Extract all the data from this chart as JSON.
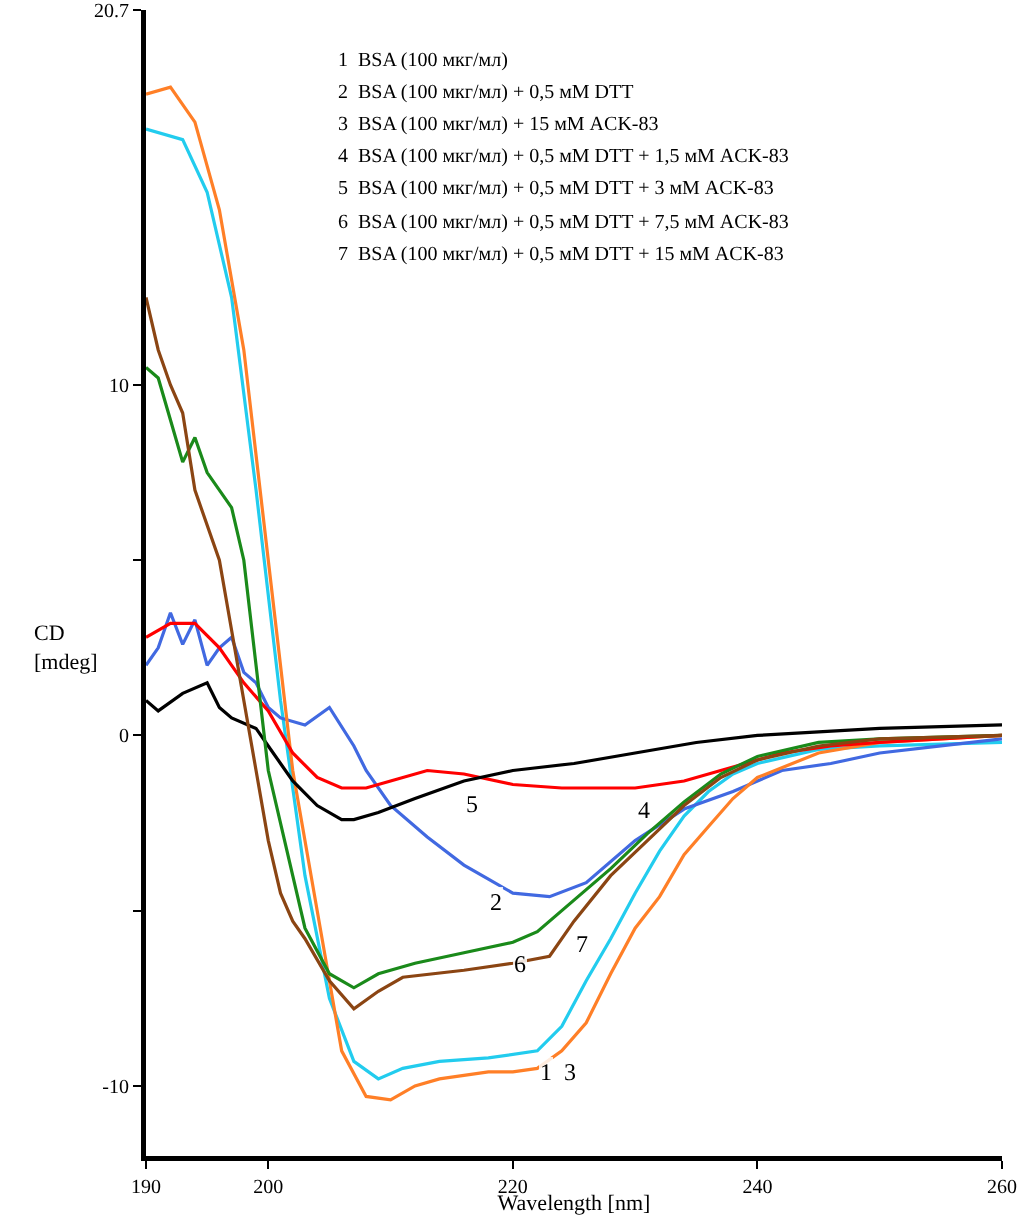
{
  "chart_data": {
    "type": "line",
    "xlabel": "Wavelength [nm]",
    "ylabel": "CD\n[mdeg]",
    "xlim": [
      190,
      260
    ],
    "xticks": [
      190,
      200,
      220,
      240,
      260
    ],
    "ylim": [
      -12,
      20.7
    ],
    "yticks": [
      20.7,
      {
        "value": 5,
        "label": null
      },
      10,
      0,
      {
        "value": -5,
        "label": null
      },
      {
        "value": -10,
        "label": "-10"
      }
    ],
    "grid": false,
    "marker": "none",
    "line_style": "solid",
    "series": [
      {
        "color": "#22ccee",
        "x": [
          190,
          193,
          195,
          197,
          199,
          201,
          203,
          205,
          207,
          209,
          211,
          214,
          218,
          222,
          224,
          226,
          228,
          230,
          232,
          234,
          236,
          238,
          240,
          245,
          250,
          260
        ],
        "values": [
          17.3,
          17,
          15.5,
          12.5,
          7,
          1,
          -4,
          -7.5,
          -9.3,
          -9.8,
          -9.5,
          -9.3,
          -9.2,
          -9,
          -8.3,
          -7,
          -5.8,
          -4.5,
          -3.3,
          -2.3,
          -1.6,
          -1.1,
          -0.8,
          -0.4,
          -0.3,
          -0.2
        ]
      },
      {
        "color": "#4169e1",
        "x": [
          190,
          191,
          192,
          193,
          194,
          195,
          196,
          197,
          198,
          199,
          200,
          201,
          203,
          205,
          207,
          208,
          210,
          213,
          216,
          218,
          220,
          223,
          226,
          230,
          234,
          238,
          242,
          246,
          250,
          255,
          260
        ],
        "values": [
          2,
          2.5,
          3.5,
          2.6,
          3.3,
          2,
          2.5,
          2.8,
          1.8,
          1.5,
          0.8,
          0.5,
          0.3,
          0.8,
          -0.3,
          -1,
          -2,
          -2.9,
          -3.7,
          -4.1,
          -4.5,
          -4.6,
          -4.2,
          -3,
          -2.1,
          -1.6,
          -1,
          -0.8,
          -0.5,
          -0.3,
          -0.1
        ]
      },
      {
        "color": "#ff7f27",
        "x": [
          190,
          192,
          194,
          196,
          198,
          200,
          202,
          204,
          206,
          208,
          210,
          212,
          214,
          216,
          218,
          220,
          222,
          224,
          226,
          228,
          230,
          232,
          234,
          236,
          238,
          240,
          245,
          250,
          255,
          260
        ],
        "values": [
          18.3,
          18.5,
          17.5,
          15,
          11,
          5,
          -1,
          -5,
          -9,
          -10.3,
          -10.4,
          -10,
          -9.8,
          -9.7,
          -9.6,
          -9.6,
          -9.5,
          -9,
          -8.2,
          -6.8,
          -5.5,
          -4.6,
          -3.4,
          -2.6,
          -1.8,
          -1.2,
          -0.5,
          -0.2,
          -0.1,
          0
        ]
      },
      {
        "color": "#ff0000",
        "x": [
          190,
          192,
          194,
          196,
          198,
          200,
          202,
          204,
          206,
          208,
          210,
          213,
          216,
          220,
          224,
          230,
          234,
          238,
          242,
          246,
          250,
          260
        ],
        "values": [
          2.8,
          3.2,
          3.2,
          2.5,
          1.5,
          0.7,
          -0.5,
          -1.2,
          -1.5,
          -1.5,
          -1.3,
          -1,
          -1.1,
          -1.4,
          -1.5,
          -1.5,
          -1.3,
          -0.9,
          -0.5,
          -0.3,
          -0.2,
          0
        ]
      },
      {
        "color": "#000000",
        "x": [
          190,
          191,
          193,
          195,
          196,
          197,
          199,
          200,
          201,
          202,
          204,
          206,
          207,
          209,
          212,
          216,
          220,
          225,
          230,
          235,
          240,
          245,
          250,
          260
        ],
        "values": [
          1,
          0.7,
          1.2,
          1.5,
          0.8,
          0.5,
          0.2,
          -0.3,
          -0.8,
          -1.3,
          -2,
          -2.4,
          -2.4,
          -2.2,
          -1.8,
          -1.3,
          -1,
          -0.8,
          -0.5,
          -0.2,
          0,
          0.1,
          0.2,
          0.3
        ]
      },
      {
        "color": "#1a8a1a",
        "x": [
          190,
          191,
          192,
          193,
          194,
          195,
          197,
          198,
          199,
          200,
          202,
          203,
          205,
          207,
          209,
          212,
          216,
          220,
          222,
          225,
          228,
          231,
          234,
          237,
          240,
          245,
          250,
          260
        ],
        "values": [
          10.5,
          10.2,
          9,
          7.8,
          8.5,
          7.5,
          6.5,
          5,
          2,
          -1,
          -4,
          -5.5,
          -6.8,
          -7.2,
          -6.8,
          -6.5,
          -6.2,
          -5.9,
          -5.6,
          -4.7,
          -3.8,
          -2.8,
          -1.9,
          -1.1,
          -0.6,
          -0.2,
          -0.1,
          0
        ]
      },
      {
        "color": "#8b4513",
        "x": [
          190,
          191,
          192,
          193,
          194,
          196,
          197,
          198,
          199,
          200,
          201,
          202,
          203,
          205,
          207,
          209,
          211,
          216,
          220,
          223,
          225,
          228,
          231,
          234,
          237,
          240,
          245,
          250,
          260
        ],
        "values": [
          12.5,
          11,
          10,
          9.2,
          7,
          5,
          3,
          1,
          -1,
          -3,
          -4.5,
          -5.3,
          -5.8,
          -7,
          -7.8,
          -7.3,
          -6.9,
          -6.7,
          -6.5,
          -6.3,
          -5.3,
          -4,
          -3,
          -2,
          -1.2,
          -0.7,
          -0.3,
          -0.1,
          0
        ]
      }
    ],
    "annotations": [
      "1  BSA (100 мкг/мл)",
      "2  BSA (100 мкг/мл) + 0,5 мМ DTT",
      "3  BSA (100 мкг/мл) + 15 мМ ACK-83",
      "4  BSA (100 мкг/мл) + 0,5 мМ DTT + 1,5 мМ ACK-83",
      "5  BSA (100 мкг/мл) + 0,5 мМ DTT + 3 мМ ACK-83",
      "6  BSA (100 мкг/мл) + 0,5 мМ DTT + 7,5 мМ ACK-83",
      "7  BSA (100 мкг/мл) + 0,5 мМ DTT + 15 мМ ACK-83",
      {
        "text": "1",
        "x": 222,
        "y": -9
      },
      {
        "text": "2",
        "x": 218,
        "y": -4.1
      },
      {
        "text": "3",
        "x": 224,
        "y": -9
      },
      {
        "text": "4",
        "x": 230,
        "y": -1.5
      },
      {
        "text": "5",
        "x": 216,
        "y": -1.3
      },
      {
        "text": "6",
        "x": 220,
        "y": -5.9
      },
      {
        "text": "7",
        "x": 225,
        "y": -5.3
      }
    ]
  }
}
